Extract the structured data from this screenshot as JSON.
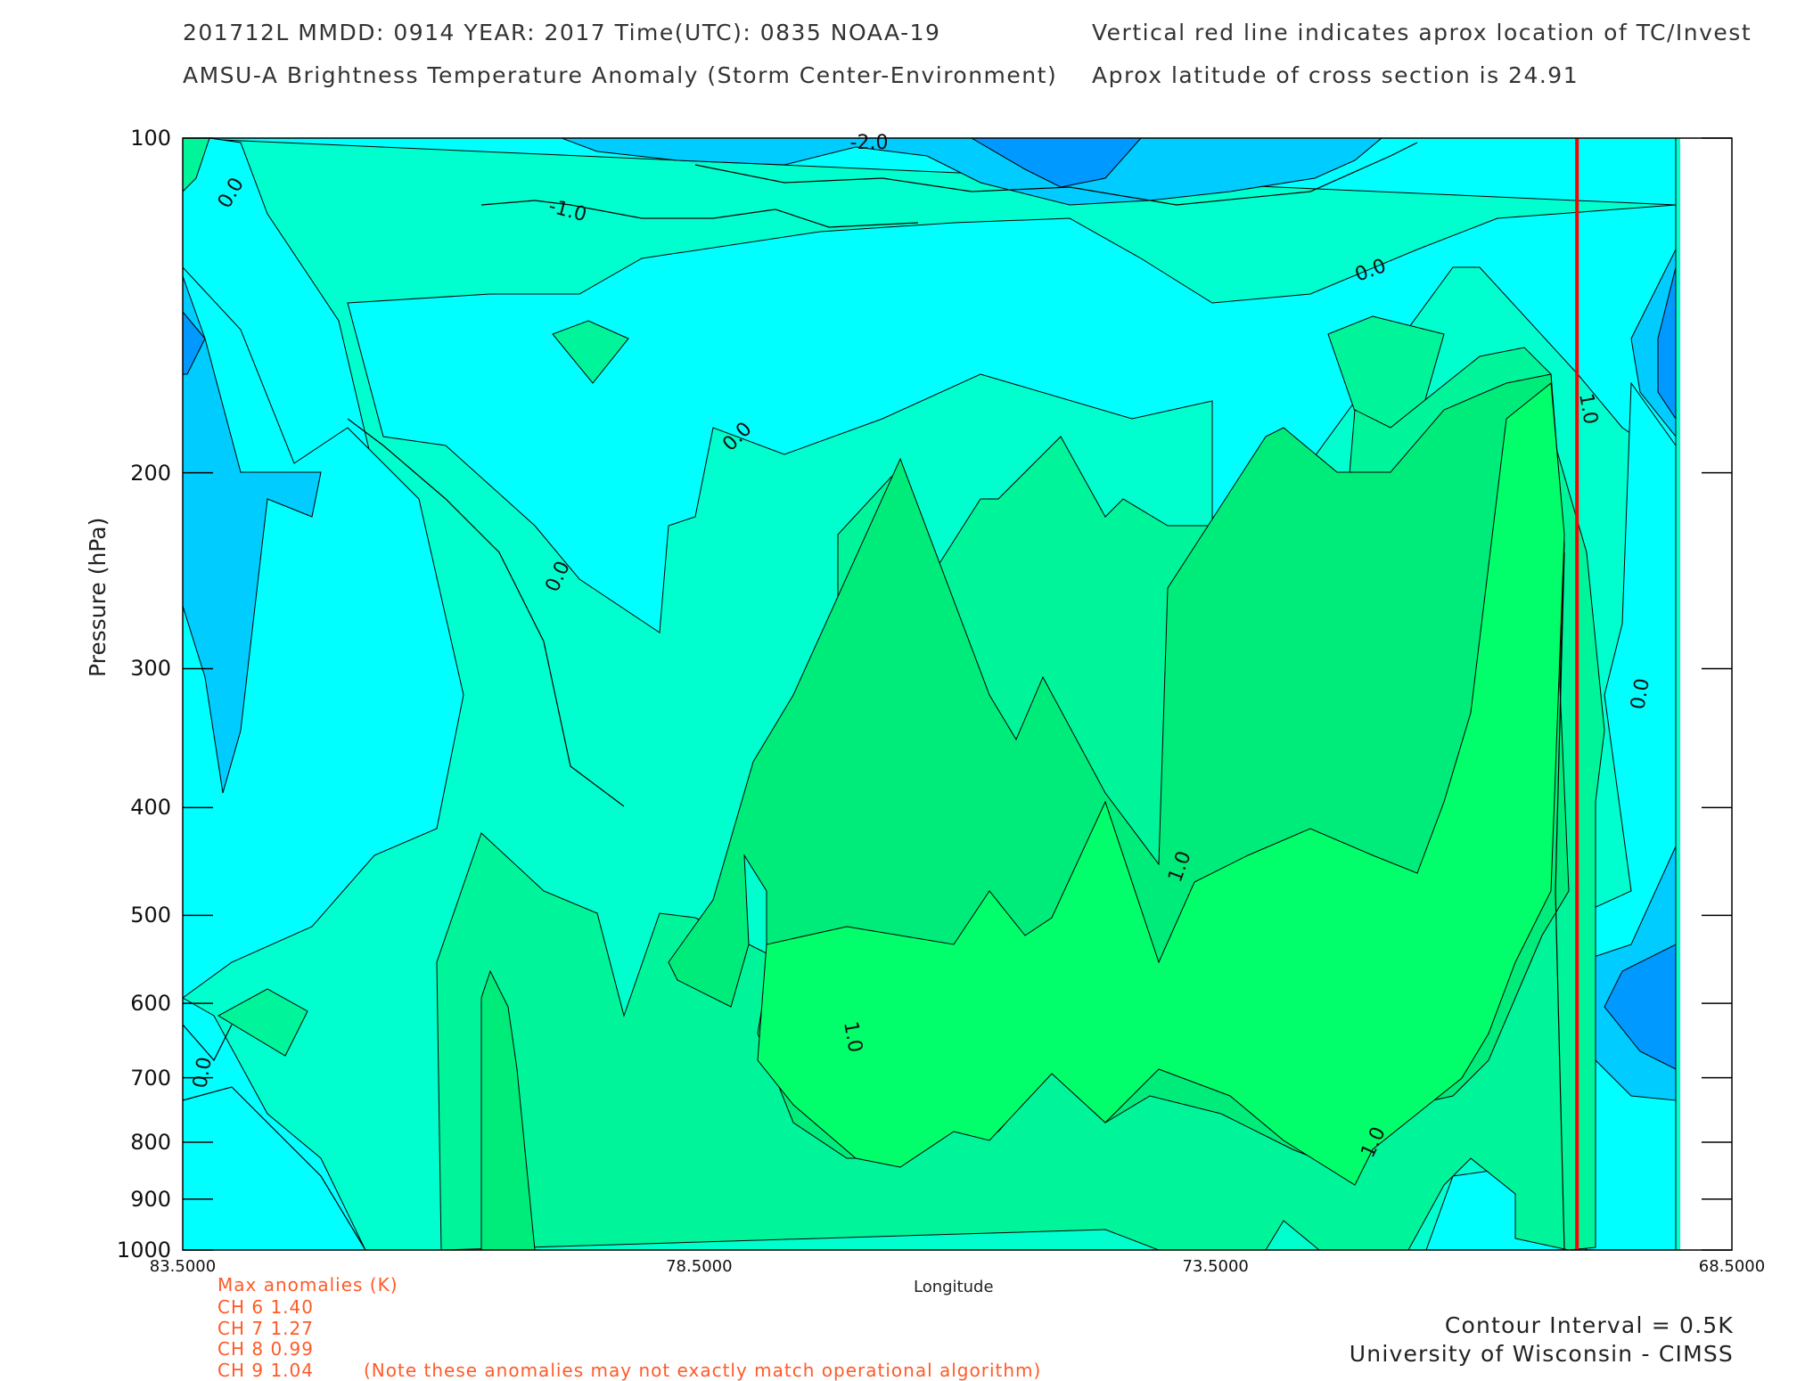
{
  "header": {
    "line1": "201712L  MMDD: 0914 YEAR: 2017 Time(UTC): 0835 NOAA-19",
    "line2": "AMSU-A Brightness Temperature Anomaly (Storm Center-Environment)",
    "line3": "Vertical red line indicates aprox location of TC/Invest",
    "line4": "Aprox latitude of cross section is 24.91"
  },
  "footer": {
    "max_title": "Max anomalies (K)",
    "channels": [
      "CH 6  1.40",
      "CH 7  1.27",
      "CH 8  0.99",
      "CH 9  1.04"
    ],
    "note": "(Note these anomalies may not exactly match operational algorithm)",
    "contour_interval": "Contour Interval = 0.5K",
    "credit": "University of Wisconsin - CIMSS"
  },
  "colors": {
    "cyan": "#00ffff",
    "teal": "#00ffce",
    "green1": "#00f59a",
    "green2": "#00ec7a",
    "green3": "#00ff6a",
    "lightblue": "#00ccff",
    "blue": "#0099ff",
    "darkblue": "#0066ff",
    "tc_line": "#ff0000"
  },
  "chart_data": {
    "type": "contour",
    "title": "AMSU-A Brightness Temperature Anomaly (Storm Center-Environment)",
    "xlabel": "Longitude",
    "ylabel": "Pressure (hPa)",
    "xlim": [
      83.5,
      68.5
    ],
    "ylim": [
      1000,
      100
    ],
    "y_scale": "log",
    "x_ticks": [
      "83.5000",
      "78.5000",
      "73.5000",
      "68.5000"
    ],
    "y_ticks": [
      "100",
      "200",
      "300",
      "400",
      "500",
      "600",
      "700",
      "800",
      "900",
      "1000"
    ],
    "data_extent_lon": [
      83.5,
      69.0
    ],
    "tc_longitude": 70.0,
    "contour_interval_K": 0.5,
    "labeled_levels": [
      "0.0",
      "-1.0",
      "-2.0",
      "1.0"
    ],
    "max_anomalies_K": {
      "CH 6": 1.4,
      "CH 7": 1.27,
      "CH 8": 0.99,
      "CH 9": 1.04
    },
    "cross_section_latitude": 24.91
  }
}
